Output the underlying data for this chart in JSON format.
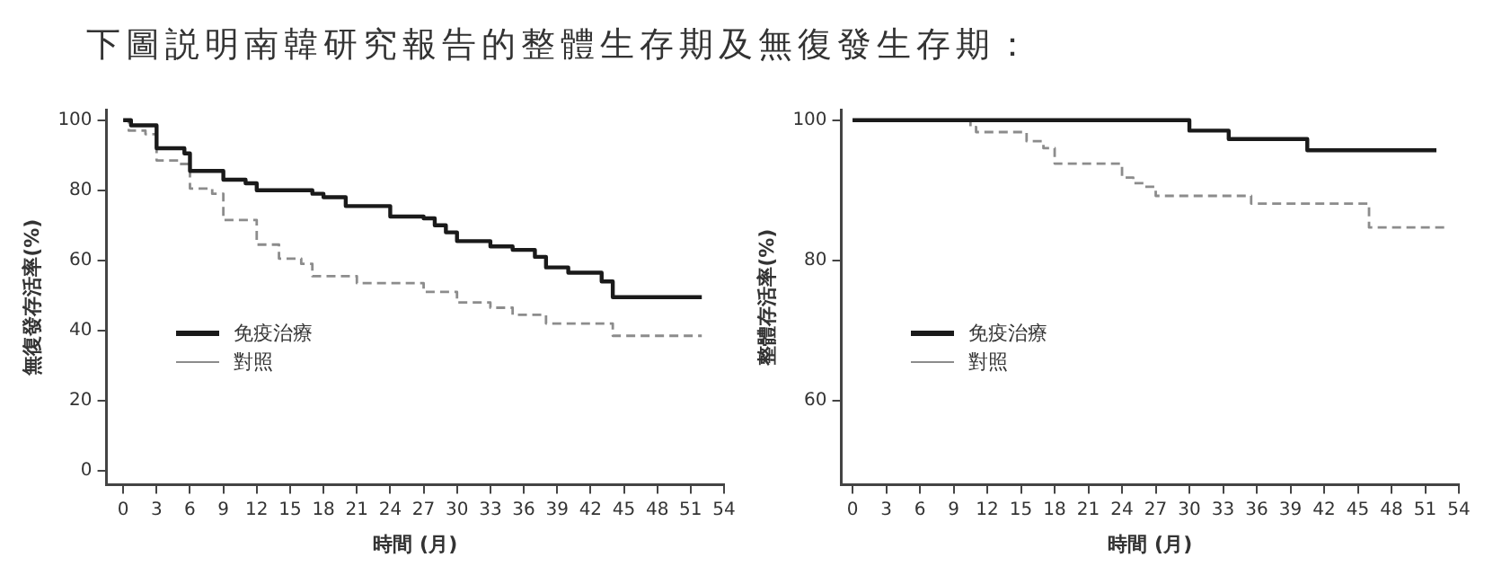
{
  "chart_data": [
    {
      "type": "step",
      "title": "下圖説明南韓研究報告的整體生存期及無復發生存期：",
      "xlabel": "時間 (月)",
      "ylabel": "無復發存活率(%)",
      "xlim": [
        -1.5,
        54
      ],
      "xticks": [
        0,
        3,
        6,
        9,
        12,
        15,
        18,
        21,
        24,
        27,
        30,
        33,
        36,
        39,
        42,
        45,
        48,
        51,
        54
      ],
      "ylim": [
        -4,
        103
      ],
      "yticks": [
        0,
        20,
        40,
        60,
        80,
        100
      ],
      "legend": "left",
      "marker": "none",
      "series": [
        {
          "name": "免疫治療",
          "color": "#1a1a1a",
          "line_style": "solid",
          "x": [
            0,
            0.7,
            3,
            5.5,
            6,
            9,
            11,
            12,
            17,
            18,
            20,
            24,
            27,
            28,
            29,
            30,
            33,
            35,
            37,
            38,
            40,
            43,
            44,
            52
          ],
          "values": [
            100,
            98.5,
            92,
            90.5,
            85.5,
            83,
            82,
            80,
            79,
            78,
            75.5,
            72.5,
            72,
            70,
            68,
            65.5,
            64,
            63,
            61,
            58,
            56.5,
            54,
            49.5,
            49.5
          ]
        },
        {
          "name": "對照",
          "color": "#8c8c8c",
          "line_style": "dashed",
          "x": [
            0,
            0.5,
            2,
            3,
            5,
            6,
            8,
            9,
            12,
            14,
            16,
            17,
            21,
            27,
            30,
            33,
            35,
            38,
            44,
            52
          ],
          "values": [
            100,
            97,
            96,
            88.5,
            87.5,
            80.5,
            79,
            71.5,
            64.5,
            60.5,
            59,
            55.5,
            53.5,
            51,
            48,
            46.5,
            44.5,
            42,
            38.5,
            38.5
          ]
        }
      ]
    },
    {
      "type": "step",
      "xlabel": "時間 (月)",
      "ylabel": "整體存活率(%)",
      "xlim": [
        -1,
        54
      ],
      "xticks": [
        0,
        3,
        6,
        9,
        12,
        15,
        18,
        21,
        24,
        27,
        30,
        33,
        36,
        39,
        42,
        45,
        48,
        51,
        54
      ],
      "ylim": [
        48,
        101.5
      ],
      "yticks": [
        60,
        80,
        100
      ],
      "legend": "left",
      "marker": "none",
      "series": [
        {
          "name": "免疫治療",
          "color": "#1a1a1a",
          "line_style": "solid",
          "x": [
            0,
            30,
            33.5,
            40.5,
            52
          ],
          "values": [
            100,
            98.5,
            97.3,
            95.7,
            95.7
          ]
        },
        {
          "name": "對照",
          "color": "#8c8c8c",
          "line_style": "dashed",
          "x": [
            0,
            10.5,
            11,
            15.5,
            17,
            18,
            24,
            25,
            26,
            27,
            35.5,
            46,
            53
          ],
          "values": [
            100,
            99,
            98.3,
            97,
            96,
            93.8,
            91.8,
            91,
            90.5,
            89.2,
            88.1,
            84.7,
            84.7
          ]
        }
      ]
    }
  ]
}
